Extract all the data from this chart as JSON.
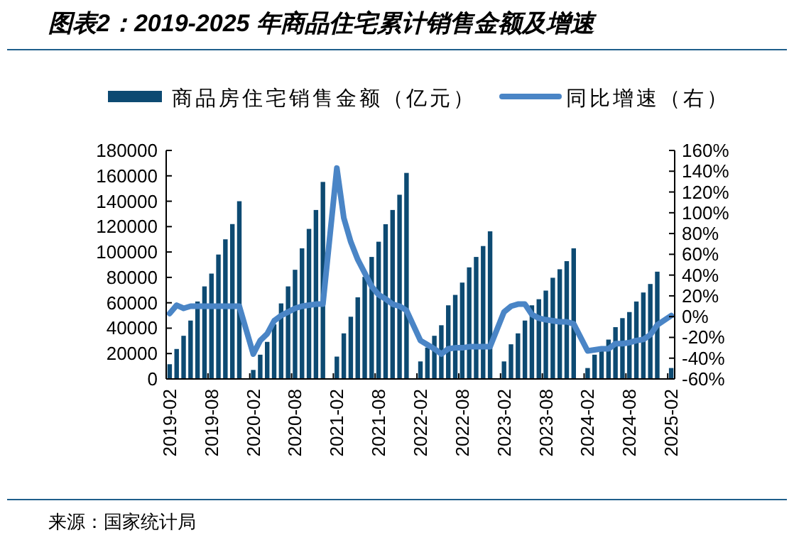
{
  "chart_data": {
    "type": "bar",
    "title": "图表2：2019-2025 年商品住宅累计销售金额及增速",
    "categories": [
      "2019-02",
      null,
      null,
      null,
      null,
      null,
      "2019-08",
      null,
      null,
      null,
      null,
      null,
      "2020-02",
      null,
      null,
      null,
      null,
      null,
      "2020-08",
      null,
      null,
      null,
      null,
      null,
      "2021-02",
      null,
      null,
      null,
      null,
      null,
      "2021-08",
      null,
      null,
      null,
      null,
      null,
      "2022-02",
      null,
      null,
      null,
      null,
      null,
      "2022-08",
      null,
      null,
      null,
      null,
      null,
      "2023-02",
      null,
      null,
      null,
      null,
      null,
      "2023-08",
      null,
      null,
      null,
      null,
      null,
      "2024-02",
      null,
      null,
      null,
      null,
      null,
      "2024-08",
      null,
      null,
      null,
      null,
      null,
      "2025-02"
    ],
    "series": [
      {
        "name": "商品房住宅销售金额（亿元）",
        "color": "#0d4a72",
        "values": [
          11600,
          23600,
          34000,
          46000,
          61000,
          72900,
          83000,
          98000,
          110000,
          122000,
          140000,
          null,
          7100,
          19100,
          29200,
          43000,
          59500,
          72900,
          86000,
          102900,
          118200,
          133100,
          155200,
          null,
          17600,
          35900,
          49000,
          64300,
          80400,
          96100,
          108100,
          121900,
          133100,
          145100,
          162300,
          null,
          13800,
          24700,
          34000,
          42300,
          58000,
          66200,
          75900,
          87900,
          96100,
          104700,
          116300,
          null,
          13800,
          27300,
          35900,
          46000,
          58000,
          62800,
          69600,
          79700,
          86400,
          92800,
          102900,
          null,
          8600,
          19100,
          23600,
          31000,
          40800,
          47900,
          52700,
          61000,
          68100,
          74800,
          84500,
          null,
          8600
        ]
      },
      {
        "name": "同比增速（右）",
        "type": "line",
        "axis": "y2",
        "color": "#4a85c6",
        "values": [
          3,
          11,
          8,
          10,
          10,
          10,
          10,
          10,
          10,
          10,
          10,
          null,
          -36,
          -23,
          -16.5,
          -4,
          1,
          4.5,
          8,
          10,
          11,
          12,
          12,
          null,
          143,
          95,
          72,
          55,
          42,
          29,
          21,
          17,
          12,
          10,
          6,
          null,
          -23,
          -27,
          -31,
          -36,
          -31,
          -30,
          -30,
          -29,
          -29,
          -29,
          -29,
          null,
          4.5,
          10,
          12,
          12,
          2,
          -1.5,
          -3,
          -4,
          -5,
          -5,
          -7,
          null,
          -33,
          -32,
          -31,
          -31,
          -26,
          -26,
          -25,
          -23,
          -22,
          -17.5,
          -8,
          null,
          1
        ]
      }
    ],
    "ylim": [
      0,
      180000
    ],
    "yticks": [
      0,
      20000,
      40000,
      60000,
      80000,
      100000,
      120000,
      140000,
      160000,
      180000
    ],
    "y2lim": [
      -60,
      160
    ],
    "y2ticks": [
      {
        "value": -60,
        "label": "-60%"
      },
      {
        "value": -40,
        "label": "-40%"
      },
      {
        "value": -20,
        "label": "-20%"
      },
      {
        "value": 0,
        "label": "0%"
      },
      {
        "value": 20,
        "label": "20%"
      },
      {
        "value": 40,
        "label": "40%"
      },
      {
        "value": 60,
        "label": "60%"
      },
      {
        "value": 80,
        "label": "80%"
      },
      {
        "value": 100,
        "label": "100%"
      },
      {
        "value": 120,
        "label": "120%"
      },
      {
        "value": 140,
        "label": "140%"
      },
      {
        "value": 160,
        "label": "160%"
      }
    ],
    "legend": "top",
    "grid": false,
    "annotations": [
      "来源：国家统计局"
    ]
  }
}
